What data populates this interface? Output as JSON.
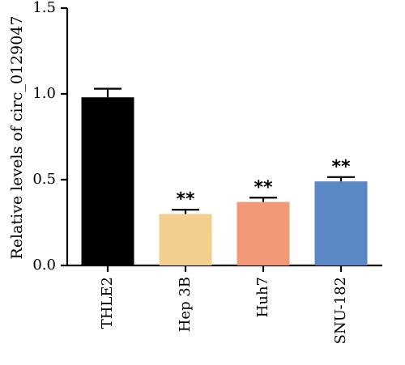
{
  "chart_data": {
    "type": "bar",
    "title": "",
    "xlabel": "",
    "ylabel": "Relative levels of circ_0129047",
    "categories": [
      "THLE2",
      "Hep 3B",
      "Huh7",
      "SNU-182"
    ],
    "values": [
      0.98,
      0.3,
      0.37,
      0.49
    ],
    "errors": [
      0.05,
      0.025,
      0.025,
      0.025
    ],
    "colors": [
      "#000000",
      "#f2cf8e",
      "#f29a78",
      "#5b87c7"
    ],
    "annotations": [
      "",
      "**",
      "**",
      "**"
    ],
    "ylim": [
      0,
      1.5
    ],
    "yticks": [
      0.0,
      0.5,
      1.0,
      1.5
    ],
    "ytick_labels": [
      "0.0",
      "0.5",
      "1.0",
      "1.5"
    ],
    "grid": false,
    "legend": "none"
  }
}
